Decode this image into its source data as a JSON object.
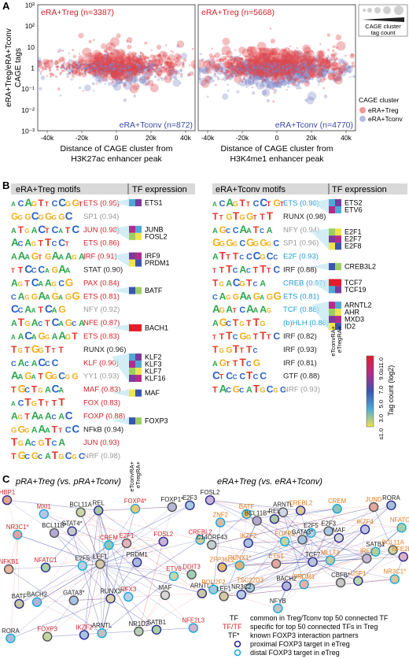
{
  "panelA": {
    "letter": "A",
    "ylabel": [
      "eRA+Treg/eRA+Tconv",
      "CAGE tags"
    ],
    "yticks": [
      "10³",
      "10²",
      "10",
      "1",
      "10⁻¹",
      "10⁻²",
      "10⁻³"
    ],
    "xticks": [
      "-40k",
      "-20k",
      "0",
      "20k",
      "40k"
    ],
    "left": {
      "treg_label": "eRA+Treg (n=3387)",
      "tconv_label": "eRA+Tconv (n=872)",
      "xlabel": [
        "Distance of CAGE cluster from",
        "H3K27ac enhancer peak"
      ]
    },
    "right": {
      "treg_label": "eRA+Treg (n=5668)",
      "tconv_label": "eRA+Tconv (n=4770)",
      "xlabel": [
        "Distance of CAGE cluster from",
        "H3K4me1 enhancer peak"
      ]
    },
    "size_legend": [
      "CAGE cluster",
      "tag count"
    ],
    "color_legend": {
      "title": "CAGE cluster",
      "items": [
        "eRA+Treg",
        "eRA+Tconv"
      ]
    },
    "colors": {
      "treg": "#e0474c",
      "tconv": "#7f86c9"
    }
  },
  "panelB": {
    "letter": "B",
    "treg_header": "eRA+Treg motifs",
    "tconv_header": "eRA+Tconv motifs",
    "tf_header": "TF expression",
    "col_labels": [
      "eTconvRA+",
      "eTregRA+"
    ],
    "scale_title": "Tag count (log2)",
    "scale_ticks": [
      "≤1.0",
      "3.0",
      "5.0",
      "7.0",
      "9.0",
      "≥11.0"
    ],
    "treg_motifs": [
      {
        "label": "ETS (0.95)",
        "color": "#d2232a",
        "seq": "ACAGTTCCGGT"
      },
      {
        "label": "SP1 (0.94)",
        "color": "#999999",
        "seq": "GGGCGGGGC"
      },
      {
        "label": "JUN (0.98)",
        "color": "#d2232a",
        "seq": "ATGACTCATC"
      },
      {
        "label": "ETS (0.86)",
        "color": "#d2232a",
        "seq": "ACAGTTCCT"
      },
      {
        "label": "IRF (0.91)",
        "color": "#d2232a",
        "seq": "AAAGTGAAAGA"
      },
      {
        "label": "STAT (0.90)",
        "color": "#222222",
        "seq": "TTCCCAGAA"
      },
      {
        "label": "PAX (0.84)",
        "color": "#d2232a",
        "seq": "AGTCAAGCG"
      },
      {
        "label": "ETS (0.81)",
        "color": "#d2232a",
        "seq": "CAGGAAGAGG"
      },
      {
        "label": "NFY (0.92)",
        "color": "#999999",
        "seq": "CCAATCAG"
      },
      {
        "label": "NFE (0.87)",
        "color": "#d2232a",
        "seq": "ATGACTCAGCA"
      },
      {
        "label": "ETS (0.83)",
        "color": "#d2232a",
        "seq": "AACAGGAAGT"
      },
      {
        "label": "RUNX (0.96)",
        "color": "#222222",
        "seq": "TGTGGTTT"
      },
      {
        "label": "KLF (0.90)",
        "color": "#d2232a",
        "seq": "CACACCC"
      },
      {
        "label": "YY1 (0.93)",
        "color": "#999999",
        "seq": "AAGATGGCGG"
      },
      {
        "label": "MAF (0.83)",
        "color": "#d2232a",
        "seq": "TGCTGACA"
      },
      {
        "label": "FOX (0.83)",
        "color": "#d2232a",
        "seq": "ACTGTTTT"
      },
      {
        "label": "FOXP (0.88)",
        "color": "#d2232a",
        "seq": "AGTAAACAC"
      },
      {
        "label": "NFkB (0.94)",
        "color": "#222222",
        "seq": "GGGAAATTCC"
      },
      {
        "label": "JUN (0.93)",
        "color": "#d2232a",
        "seq": "TGACGTCA"
      },
      {
        "label": "NRF (0.98)",
        "color": "#999999",
        "seq": "TGCGCATGCGC"
      }
    ],
    "tconv_motifs": [
      {
        "label": "ETS (0.96)",
        "color": "#1f9bd7",
        "seq": "ACAGTTCCTGT"
      },
      {
        "label": "RUNX (0.98)",
        "color": "#222222",
        "seq": "TTGTGGTTT"
      },
      {
        "label": "NFY (0.94)",
        "color": "#999999",
        "seq": "AGCCAATCA"
      },
      {
        "label": "SP1 (0.96)",
        "color": "#999999",
        "seq": "GGGGCGGGGC"
      },
      {
        "label": "E2F (0.93)",
        "color": "#1f9bd7",
        "seq": "ATTTCCCGCC"
      },
      {
        "label": "IRF (0.88)",
        "color": "#222222",
        "seq": "TTTCACTTTC"
      },
      {
        "label": "CREB (0.97)",
        "color": "#1f9bd7",
        "seq": "TGACGTCA"
      },
      {
        "label": "ETS (0.81)",
        "color": "#1f9bd7",
        "seq": "CAGGAAGAGG"
      },
      {
        "label": "TCF (0.88)",
        "color": "#1f9bd7",
        "seq": "AGATCAAAG"
      },
      {
        "label": "(b)HLH (0.86)",
        "color": "#1f9bd7",
        "seq": "AGCTGTTG"
      },
      {
        "label": "IRF (0.82)",
        "color": "#222222",
        "seq": "TTTCGGTTTC"
      },
      {
        "label": "IRF (0.93)",
        "color": "#222222",
        "seq": "TGGTTTC"
      },
      {
        "label": "IRF (0.81)",
        "color": "#222222",
        "seq": "AGTTTCG"
      },
      {
        "label": "GTF (0.88)",
        "color": "#222222",
        "seq": "CTCCCTCC"
      },
      {
        "label": "NRF (0.93)",
        "color": "#999999",
        "seq": "TACGCATGCGC"
      }
    ],
    "treg_tf_groups": [
      {
        "names": [
          "ETS1"
        ],
        "row": 0
      },
      {
        "names": [
          "JUNB",
          "FOSL2"
        ],
        "row": 2
      },
      {
        "names": [
          "IRF9",
          "PRDM1"
        ],
        "row": 4
      },
      {
        "names": [
          "BATF"
        ],
        "row": 6.6
      },
      {
        "names": [
          "BACH1"
        ],
        "row": 9.4
      },
      {
        "names": [
          "KLF2",
          "KLF3",
          "KLF7",
          "KLF16"
        ],
        "row": 11.6
      },
      {
        "names": [
          "MAF"
        ],
        "row": 14.3
      },
      {
        "names": [
          "FOXP3"
        ],
        "row": 16.4
      }
    ],
    "tconv_tf_groups": [
      {
        "names": [
          "ETS2",
          "ETV6"
        ],
        "row": 0
      },
      {
        "names": [
          "E2F1",
          "E2F7",
          "E2F8"
        ],
        "row": 2.2
      },
      {
        "names": [
          "CREB3L2"
        ],
        "row": 4.8
      },
      {
        "names": [
          "TCF7",
          "TCF19"
        ],
        "row": 6
      },
      {
        "names": [
          "ARNTL2",
          "AHR",
          "MXD3",
          "ID2"
        ],
        "row": 7.7
      }
    ]
  },
  "panelC": {
    "letter": "C",
    "left_title": "pRA+Treg (vs. pRA+Tconv)",
    "right_title": "eRA+Treg (vs. eRA+Tconv)",
    "left_nodes": [
      {
        "name": "HBP1",
        "c": "#e0a68a",
        "t": "#d2232a"
      },
      {
        "name": "MXI1",
        "c": "#b8c7e6",
        "t": "#d2232a"
      },
      {
        "name": "BCL11A",
        "c": "#cbd6a8",
        "t": "#222"
      },
      {
        "name": "REL",
        "c": "#a9c7a0",
        "t": "#222"
      },
      {
        "name": "FOXP4*",
        "c": "#f2c96a",
        "t": "#d2232a"
      },
      {
        "name": "FOXP1*",
        "c": "#b7b7d9",
        "t": "#222"
      },
      {
        "name": "E2F3",
        "c": "#a6c8e2",
        "t": "#222"
      },
      {
        "name": "NR3C1*",
        "c": "#e8a19c",
        "t": "#d2232a"
      },
      {
        "name": "BCL11B*",
        "c": "#b3a9d6",
        "t": "#222"
      },
      {
        "name": "STAT4*",
        "c": "#c6c6c6",
        "t": "#222"
      },
      {
        "name": "CREM",
        "c": "#8fc4b8",
        "t": "#d2232a"
      },
      {
        "name": "E2F1",
        "c": "#e6b2c0",
        "t": "#d2232a"
      },
      {
        "name": "FOSL2",
        "c": "#c9b1d8",
        "t": "#d2232a"
      },
      {
        "name": "CREBL2",
        "c": "#d8c79b",
        "t": "#d2232a"
      },
      {
        "name": "NFKB1",
        "c": "#e8b6a0",
        "t": "#d2232a"
      },
      {
        "name": "NFATC1",
        "c": "#a6d0a6",
        "t": "#d2232a"
      },
      {
        "name": "E2F5",
        "c": "#b9cfe4",
        "t": "#222"
      },
      {
        "name": "LEF1",
        "c": "#d6c9a6",
        "t": "#222"
      },
      {
        "name": "PRDM1",
        "c": "#aab8d8",
        "t": "#222"
      },
      {
        "name": "ETV6",
        "c": "#c7d7a6",
        "t": "#d2232a"
      },
      {
        "name": "DDIT3",
        "c": "#9fcfb7",
        "t": "#d2232a"
      },
      {
        "name": "BATF",
        "c": "#c6c6a0",
        "t": "#222"
      },
      {
        "name": "BACH2",
        "c": "#b3b3d9",
        "t": "#222"
      },
      {
        "name": "GATA3*",
        "c": "#a6c2e3",
        "t": "#222"
      },
      {
        "name": "RUNX3",
        "c": "#d9d0a3",
        "t": "#222"
      },
      {
        "name": "RFX3",
        "c": "#b7d1e6",
        "t": "#d2232a"
      },
      {
        "name": "MAF",
        "c": "#d6d6d6",
        "t": "#222"
      },
      {
        "name": "ARNTL2",
        "c": "#c9c9a6",
        "t": "#222"
      },
      {
        "name": "RORA",
        "c": "#a6bfd9",
        "t": "#222"
      },
      {
        "name": "FOXP3",
        "c": "#c3d6a2",
        "t": "#d2232a"
      },
      {
        "name": "IKZF2",
        "c": "#a9c3e0",
        "t": "#d2232a"
      },
      {
        "name": "ARNTL",
        "c": "#c1c1c1",
        "t": "#222"
      },
      {
        "name": "NR1D2",
        "c": "#b6d0b6",
        "t": "#222"
      },
      {
        "name": "SATB1",
        "c": "#a9d1a4",
        "t": "#222"
      },
      {
        "name": "NFE2L3",
        "c": "#d9b0c6",
        "t": "#d2232a"
      }
    ],
    "right_nodes": [
      {
        "name": "FOSL2",
        "c": "#c9b1d8",
        "t": "#222"
      },
      {
        "name": "BATF",
        "c": "#e4c07a",
        "t": "#e07a1a"
      },
      {
        "name": "ARNTL",
        "c": "#cfd6ea",
        "t": "#222"
      },
      {
        "name": "CREBL2",
        "c": "#d8c79b",
        "t": "#e07a1a"
      },
      {
        "name": "CREM",
        "c": "#8fc4b8",
        "t": "#e07a1a"
      },
      {
        "name": "JUND",
        "c": "#e3a7a2",
        "t": "#e07a1a"
      },
      {
        "name": "RORA",
        "c": "#a6bfd9",
        "t": "#222"
      },
      {
        "name": "ZNF2",
        "c": "#d6b8a6",
        "t": "#e07a1a"
      },
      {
        "name": "BCL11B*",
        "c": "#b3a9d6",
        "t": "#222"
      },
      {
        "name": "REL",
        "c": "#a9c7a0",
        "t": "#222"
      },
      {
        "name": "E2F5",
        "c": "#b9cfe4",
        "t": "#222"
      },
      {
        "name": "E2F3",
        "c": "#a6c8e2",
        "t": "#222"
      },
      {
        "name": "IKZF4",
        "c": "#c2c2e0",
        "t": "#e07a1a"
      },
      {
        "name": "NFATC1",
        "c": "#a6d0a6",
        "t": "#e07a1a"
      },
      {
        "name": "C14ORF43",
        "c": "#c2ced2",
        "t": "#222"
      },
      {
        "name": "IKZF2",
        "c": "#a9c3e0",
        "t": "#e07a1a"
      },
      {
        "name": "FOXP3",
        "c": "#c3d6a2",
        "t": "#e07a1a"
      },
      {
        "name": "GATA3*",
        "c": "#a6c2e3",
        "t": "#222"
      },
      {
        "name": "MAF",
        "c": "#d6d6d6",
        "t": "#222"
      },
      {
        "name": "SATB1",
        "c": "#a9d1a4",
        "t": "#222"
      },
      {
        "name": "BCL11A",
        "c": "#cbd6a8",
        "t": "#e07a1a"
      },
      {
        "name": "ZFP36L2",
        "c": "#e6b96e",
        "t": "#e07a1a"
      },
      {
        "name": "RUNX1*",
        "c": "#e0b07a",
        "t": "#e07a1a"
      },
      {
        "name": "ETS1",
        "c": "#e6a6a0",
        "t": "#e07a1a"
      },
      {
        "name": "TCF7",
        "c": "#b6c3d9",
        "t": "#222"
      },
      {
        "name": "MLLT3",
        "c": "#c6c6a0",
        "t": "#e07a1a"
      },
      {
        "name": "IRF2",
        "c": "#c7b8d6",
        "t": "#e07a1a"
      },
      {
        "name": "NFE2L3",
        "c": "#d9b0c6",
        "t": "#e07a1a"
      },
      {
        "name": "POU2F2",
        "c": "#a6c8d9",
        "t": "#e07a1a"
      },
      {
        "name": "TSC22D3",
        "c": "#a6cfe2",
        "t": "#e07a1a"
      },
      {
        "name": "BACH2",
        "c": "#b3b3d9",
        "t": "#222"
      },
      {
        "name": "PRDM1",
        "c": "#e6b2a6",
        "t": "#e07a1a"
      },
      {
        "name": "CBFB*",
        "c": "#c7c7c7",
        "t": "#222"
      },
      {
        "name": "USF1",
        "c": "#b7d6a8",
        "t": "#e07a1a"
      },
      {
        "name": "NR3C1*",
        "c": "#d8c79b",
        "t": "#e07a1a"
      },
      {
        "name": "LEF1",
        "c": "#d6c9a6",
        "t": "#222"
      },
      {
        "name": "NR3C2",
        "c": "#b6cfe0",
        "t": "#222"
      },
      {
        "name": "NFYB",
        "c": "#c3c3c3",
        "t": "#222"
      }
    ],
    "legend": [
      {
        "sym": "TF",
        "text": "common in Treg/Tconv top 50 connected TF"
      },
      {
        "sym": "TF/TF",
        "text": "specific for top 50 connected TFs in Treg"
      },
      {
        "sym": "TF*",
        "text": "known FOXP3 interaction partners"
      },
      {
        "sym": "",
        "text": "proximal FOXP3 target in eTreg"
      },
      {
        "sym": "",
        "text": "distal FOXP3 target in eTreg"
      }
    ]
  }
}
